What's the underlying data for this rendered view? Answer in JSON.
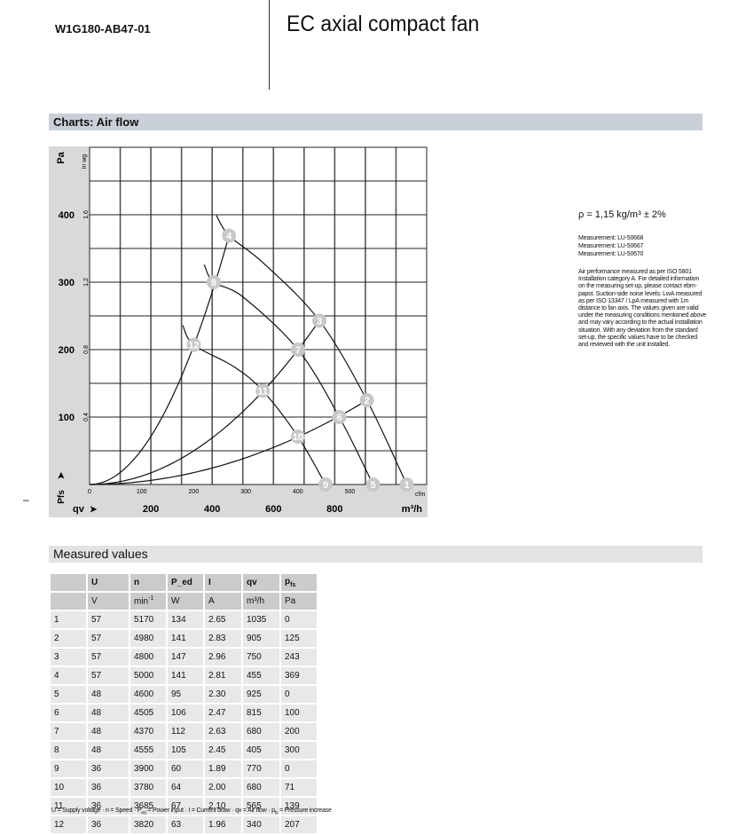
{
  "header": {
    "model": "W1G180-AB47-01",
    "product_title": "EC axial compact fan"
  },
  "sections": {
    "charts": "Charts: Air flow",
    "measured": "Measured values"
  },
  "side_notes": {
    "density": "ρ = 1,15 kg/m³ ± 2%",
    "measurements": [
      "Measurement: LU-50668",
      "Measurement: LU-50667",
      "Measurement: LU-50670"
    ],
    "note": "Air performance measured as per ISO 5801 Installation category A. For detailed information on the measuring set-up, please contact ebm-papst. Suction-side noise levels: LwA measured as per ISO 13347 / LpA measured with 1m distance to fan axis. The values given are valid under the measuring conditions mentioned above and may vary according to the actual installation situation. With any deviation from the standard set-up, the specific values have to be checked and reviewed with the unit installed."
  },
  "chart_data": {
    "type": "line",
    "xlabel": "qv",
    "xunit": "m³/h",
    "xlim": [
      0,
      1100
    ],
    "xticks": [
      200,
      400,
      600,
      800
    ],
    "x2unit": "cfm",
    "x2ticks": [
      0,
      100,
      200,
      300,
      400,
      500
    ],
    "ylabel": "Pfs",
    "yunit": "Pa",
    "ylim": [
      0,
      500
    ],
    "yticks": [
      100,
      200,
      300,
      400
    ],
    "y2unit": "in wg",
    "y2ticks": [
      "0,4",
      "0,8",
      "1,2",
      "1,6"
    ],
    "grid": true,
    "fan_curves": [
      {
        "x": [
          414,
          455,
          568,
          750,
          905,
          1035
        ],
        "y": [
          399,
          369,
          328,
          243,
          125,
          0
        ]
      },
      {
        "x": [
          374,
          405,
          501,
          680,
          815,
          925
        ],
        "y": [
          326,
          300,
          278,
          200,
          100,
          0
        ]
      },
      {
        "x": [
          304,
          340,
          470,
          565,
          680,
          770
        ],
        "y": [
          236,
          207,
          175,
          139,
          71,
          0
        ]
      }
    ],
    "system_curves": [
      {
        "points": [
          12,
          8,
          4
        ]
      },
      {
        "points": [
          11,
          7,
          3
        ]
      },
      {
        "points": [
          10,
          6,
          2
        ]
      }
    ],
    "operating_points": [
      {
        "label": "1",
        "x": 1035,
        "y": 0
      },
      {
        "label": "2",
        "x": 905,
        "y": 125
      },
      {
        "label": "3",
        "x": 750,
        "y": 243
      },
      {
        "label": "4",
        "x": 455,
        "y": 369
      },
      {
        "label": "5",
        "x": 925,
        "y": 0
      },
      {
        "label": "6",
        "x": 815,
        "y": 100
      },
      {
        "label": "7",
        "x": 680,
        "y": 200
      },
      {
        "label": "8",
        "x": 405,
        "y": 300
      },
      {
        "label": "9",
        "x": 770,
        "y": 0
      },
      {
        "label": "10",
        "x": 680,
        "y": 71
      },
      {
        "label": "11",
        "x": 565,
        "y": 139
      },
      {
        "label": "12",
        "x": 340,
        "y": 207
      }
    ],
    "marker_color": "#c8c8c8",
    "axis_band_color": "#d9d9d9"
  },
  "table": {
    "headers": [
      "",
      "U",
      "n",
      "P_ed",
      "I",
      "qv",
      "p_fs"
    ],
    "units": [
      "",
      "V",
      "min-1",
      "W",
      "A",
      "m³/h",
      "Pa"
    ],
    "rows": [
      [
        "1",
        "57",
        "5170",
        "134",
        "2.65",
        "1035",
        "0"
      ],
      [
        "2",
        "57",
        "4980",
        "141",
        "2.83",
        "905",
        "125"
      ],
      [
        "3",
        "57",
        "4800",
        "147",
        "2.96",
        "750",
        "243"
      ],
      [
        "4",
        "57",
        "5000",
        "141",
        "2.81",
        "455",
        "369"
      ],
      [
        "5",
        "48",
        "4600",
        "95",
        "2.30",
        "925",
        "0"
      ],
      [
        "6",
        "48",
        "4505",
        "106",
        "2.47",
        "815",
        "100"
      ],
      [
        "7",
        "48",
        "4370",
        "112",
        "2.63",
        "680",
        "200"
      ],
      [
        "8",
        "48",
        "4555",
        "105",
        "2.45",
        "405",
        "300"
      ],
      [
        "9",
        "36",
        "3900",
        "60",
        "1.89",
        "770",
        "0"
      ],
      [
        "10",
        "36",
        "3780",
        "64",
        "2.00",
        "680",
        "71"
      ],
      [
        "11",
        "36",
        "3685",
        "67",
        "2.10",
        "565",
        "139"
      ],
      [
        "12",
        "36",
        "3820",
        "63",
        "1.96",
        "340",
        "207"
      ]
    ]
  },
  "legend": "U = Supply voltage · n = Speed · Ped = Power input · I = Current draw · qv = Air flow · pfs = Pressure increase"
}
